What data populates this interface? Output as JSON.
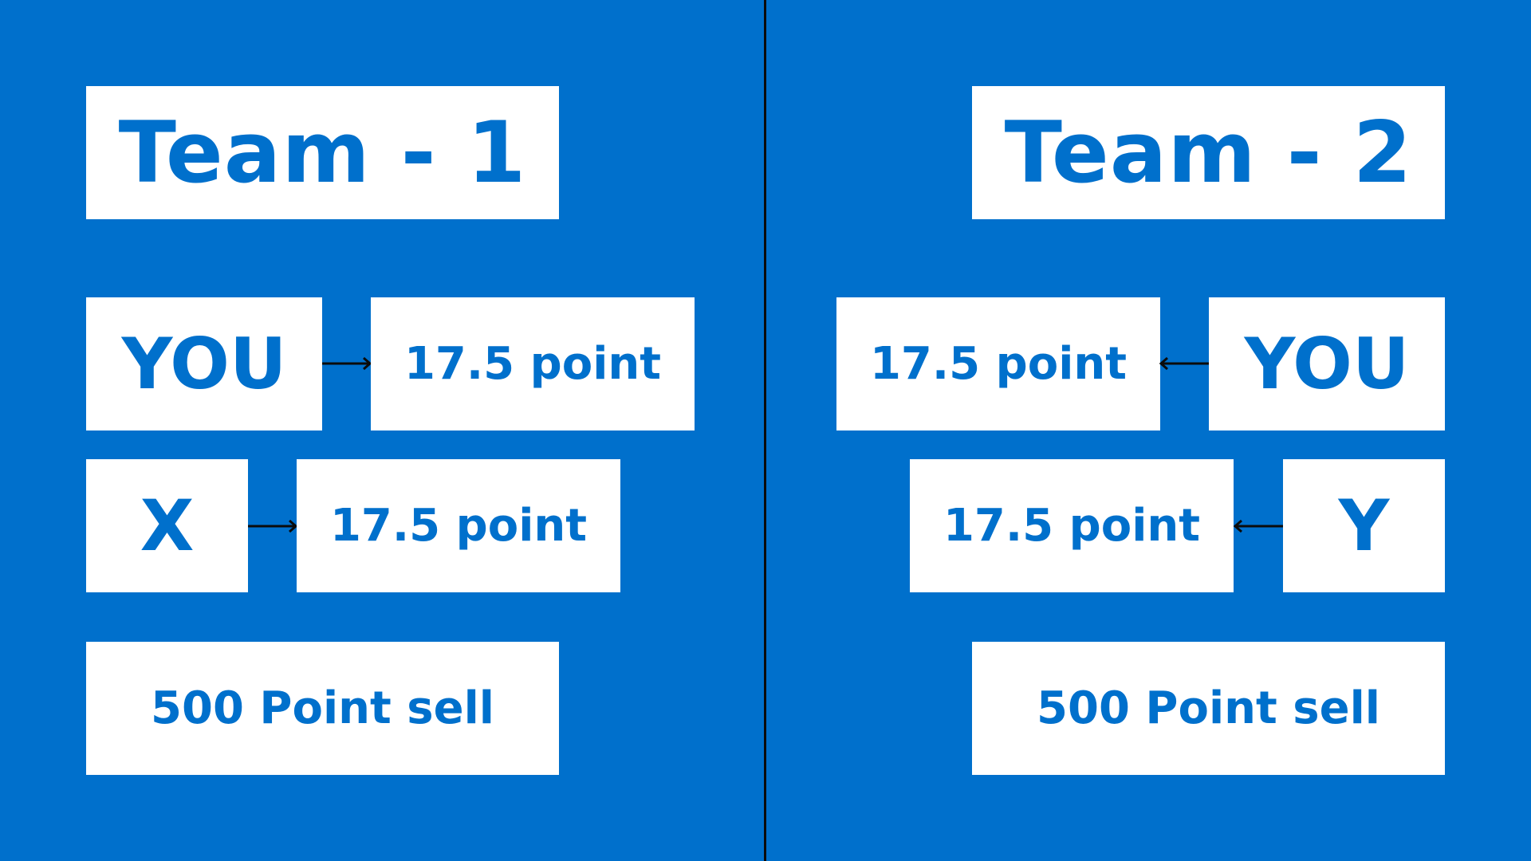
{
  "colors": {
    "background": "#0070cc",
    "box": "#ffffff",
    "text": "#0070cc",
    "line": "#0b0b0b"
  },
  "team1": {
    "title": "Team - 1",
    "row1": {
      "name": "YOU",
      "points": "17.5 point"
    },
    "row2": {
      "name": "X",
      "points": "17.5 point"
    },
    "sell": "500 Point sell"
  },
  "team2": {
    "title": "Team - 2",
    "row1": {
      "name": "YOU",
      "points": "17.5 point"
    },
    "row2": {
      "name": "Y",
      "points": "17.5 point"
    },
    "sell": "500 Point sell"
  }
}
